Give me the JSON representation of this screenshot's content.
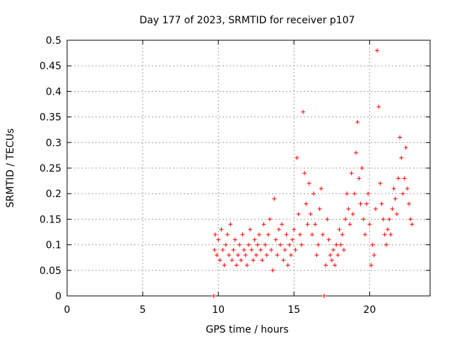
{
  "chart_data": {
    "type": "scatter",
    "title": "Day 177 of 2023, SRMTID for receiver p107",
    "xlabel": "GPS time / hours",
    "ylabel": "SRMTID / TECUs",
    "xlim": [
      0,
      24
    ],
    "ylim": [
      0,
      0.5
    ],
    "x_ticks": [
      0,
      5,
      10,
      15,
      20
    ],
    "x_tick_labels": [
      "0",
      "5",
      "10",
      "15",
      "20"
    ],
    "y_ticks": [
      0,
      0.05,
      0.1,
      0.15,
      0.2,
      0.25,
      0.3,
      0.35,
      0.4,
      0.45,
      0.5
    ],
    "y_tick_labels": [
      "0",
      "0.05",
      "0.1",
      "0.15",
      "0.2",
      "0.25",
      "0.3",
      "0.35",
      "0.4",
      "0.45",
      "0.5"
    ],
    "grid": true,
    "marker": "plus",
    "series": [
      {
        "name": "SRMTID",
        "color": "#ff0000",
        "x": [
          9.7,
          9.75,
          9.8,
          9.9,
          10.0,
          10.1,
          10.2,
          10.3,
          10.4,
          10.5,
          10.6,
          10.7,
          10.8,
          10.9,
          11.0,
          11.1,
          11.2,
          11.3,
          11.4,
          11.5,
          11.6,
          11.7,
          11.8,
          11.9,
          12.0,
          12.1,
          12.2,
          12.3,
          12.4,
          12.5,
          12.6,
          12.7,
          12.8,
          12.9,
          13.0,
          13.1,
          13.2,
          13.3,
          13.4,
          13.5,
          13.6,
          13.7,
          13.8,
          13.9,
          14.0,
          14.1,
          14.2,
          14.3,
          14.4,
          14.5,
          14.6,
          14.7,
          14.8,
          14.9,
          15.0,
          15.1,
          15.2,
          15.3,
          15.4,
          15.5,
          15.6,
          15.7,
          15.8,
          15.9,
          16.0,
          16.1,
          16.2,
          16.3,
          16.4,
          16.5,
          16.6,
          16.7,
          16.8,
          16.9,
          17.0,
          17.1,
          17.2,
          17.3,
          17.4,
          17.5,
          17.6,
          17.7,
          17.8,
          17.9,
          18.0,
          18.1,
          18.2,
          18.3,
          18.4,
          18.5,
          18.6,
          18.7,
          18.8,
          18.9,
          19.0,
          19.1,
          19.2,
          19.3,
          19.4,
          19.5,
          19.6,
          19.7,
          19.8,
          19.9,
          20.0,
          20.1,
          20.2,
          20.3,
          20.4,
          20.5,
          20.6,
          20.7,
          20.8,
          20.9,
          21.0,
          21.1,
          21.2,
          21.3,
          21.4,
          21.5,
          21.6,
          21.7,
          21.8,
          21.9,
          22.0,
          22.1,
          22.2,
          22.3,
          22.4,
          22.5,
          22.6,
          22.7,
          22.8
        ],
        "y": [
          0.0,
          0.09,
          0.12,
          0.08,
          0.11,
          0.07,
          0.13,
          0.09,
          0.06,
          0.1,
          0.12,
          0.08,
          0.14,
          0.07,
          0.09,
          0.11,
          0.06,
          0.08,
          0.1,
          0.07,
          0.12,
          0.09,
          0.08,
          0.06,
          0.1,
          0.13,
          0.09,
          0.07,
          0.11,
          0.08,
          0.1,
          0.12,
          0.09,
          0.07,
          0.14,
          0.1,
          0.08,
          0.12,
          0.15,
          0.09,
          0.05,
          0.19,
          0.11,
          0.08,
          0.13,
          0.1,
          0.14,
          0.07,
          0.09,
          0.12,
          0.06,
          0.1,
          0.08,
          0.11,
          0.13,
          0.09,
          0.27,
          0.16,
          0.12,
          0.1,
          0.36,
          0.24,
          0.18,
          0.14,
          0.22,
          0.16,
          0.12,
          0.2,
          0.14,
          0.08,
          0.1,
          0.17,
          0.21,
          0.12,
          0.0,
          0.06,
          0.15,
          0.11,
          0.08,
          0.07,
          0.09,
          0.06,
          0.1,
          0.08,
          0.13,
          0.1,
          0.12,
          0.09,
          0.15,
          0.2,
          0.17,
          0.14,
          0.24,
          0.16,
          0.2,
          0.28,
          0.34,
          0.23,
          0.18,
          0.25,
          0.15,
          0.12,
          0.18,
          0.2,
          0.14,
          0.06,
          0.1,
          0.08,
          0.17,
          0.48,
          0.37,
          0.22,
          0.18,
          0.15,
          0.12,
          0.1,
          0.13,
          0.15,
          0.12,
          0.17,
          0.21,
          0.19,
          0.16,
          0.23,
          0.31,
          0.27,
          0.2,
          0.23,
          0.29,
          0.21,
          0.18,
          0.15,
          0.14
        ]
      }
    ]
  }
}
